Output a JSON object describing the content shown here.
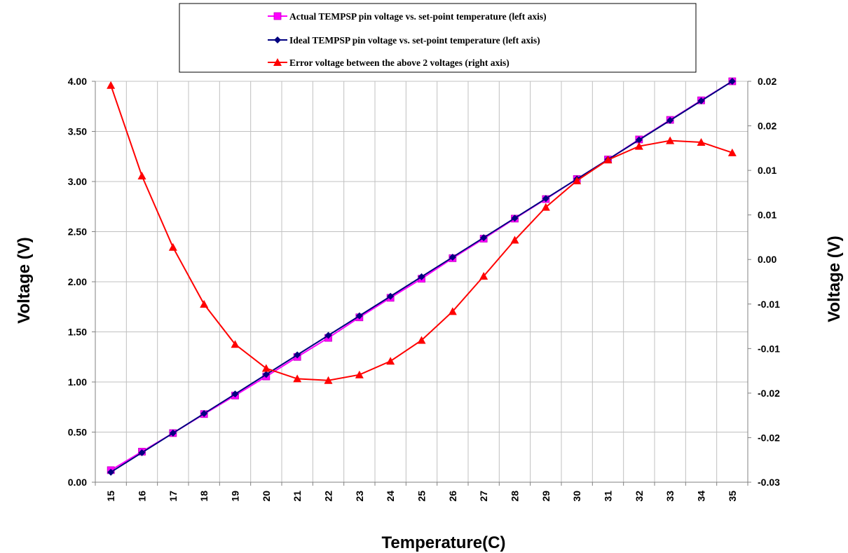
{
  "chart_data": {
    "type": "line",
    "xlabel": "Temperature(C)",
    "ylabel_left": "Voltage (V)",
    "ylabel_right": "Voltage (V)",
    "x": [
      15,
      16,
      17,
      18,
      19,
      20,
      21,
      22,
      23,
      24,
      25,
      26,
      27,
      28,
      29,
      30,
      31,
      32,
      33,
      34,
      35
    ],
    "ylim_left": [
      0,
      4
    ],
    "ylim_right": [
      -0.03,
      0.02
    ],
    "yticks_left": [
      "0.00",
      "0.50",
      "1.00",
      "1.50",
      "2.00",
      "2.50",
      "3.00",
      "3.50",
      "4.00"
    ],
    "yticks_right": [
      "-0.03",
      "-0.02",
      "-0.02",
      "-0.01",
      "-0.01",
      "0.00",
      "0.01",
      "0.01",
      "0.02",
      "0.02"
    ],
    "grid": true,
    "legend_position": "top-center",
    "series": [
      {
        "name": "Actual TEMPSP pin voltage vs. set-point temperature (left axis)",
        "axis": "left",
        "marker": "square",
        "color": "#ff00ff",
        "values": [
          0.12,
          0.305,
          0.49,
          0.68,
          0.865,
          1.055,
          1.25,
          1.44,
          1.645,
          1.84,
          2.03,
          2.235,
          2.43,
          2.63,
          2.825,
          3.025,
          3.22,
          3.42,
          3.615,
          3.81,
          4.0
        ]
      },
      {
        "name": "Ideal TEMPSP pin voltage vs. set-point temperature (left axis)",
        "axis": "left",
        "marker": "diamond",
        "color": "#000080",
        "values": [
          0.1,
          0.295,
          0.49,
          0.685,
          0.88,
          1.075,
          1.27,
          1.465,
          1.66,
          1.855,
          2.05,
          2.245,
          2.44,
          2.635,
          2.83,
          3.025,
          3.22,
          3.415,
          3.61,
          3.805,
          4.0
        ]
      },
      {
        "name": "Error voltage between the above 2 voltages (right axis)",
        "axis": "right",
        "marker": "triangle",
        "color": "#ff0000",
        "values": [
          0.0195,
          0.0082,
          -0.0007,
          -0.0078,
          -0.0128,
          -0.0158,
          -0.0171,
          -0.0173,
          -0.0166,
          -0.0149,
          -0.0123,
          -0.0087,
          -0.0043,
          0.0002,
          0.0043,
          0.0076,
          0.0102,
          0.0119,
          0.0126,
          0.0124,
          0.0111
        ]
      }
    ]
  }
}
